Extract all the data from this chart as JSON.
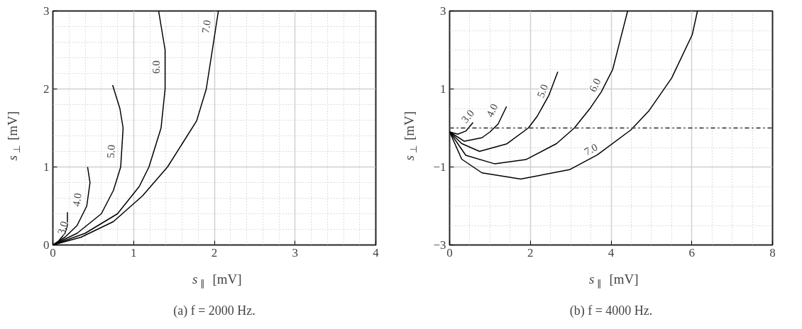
{
  "chart_data": [
    {
      "type": "line",
      "title": "(a) f = 2000 Hz.",
      "xlabel": "s$_{∥}$ [mV]",
      "ylabel": "s$_{⊥}$ [mV]",
      "xlim": [
        0,
        4
      ],
      "ylim": [
        0,
        3
      ],
      "xticks": [
        0,
        1,
        2,
        3,
        4
      ],
      "yticks": [
        0,
        1,
        2,
        3
      ],
      "grid": true,
      "line_style": "solid",
      "marker": "none",
      "series": [
        {
          "color": "#000000",
          "x": [
            0,
            0.07,
            0.15,
            0.18,
            0.18
          ],
          "values": [
            0,
            0.05,
            0.15,
            0.25,
            0.42
          ]
        },
        {
          "color": "#000000",
          "x": [
            0,
            0.15,
            0.3,
            0.42,
            0.46,
            0.43
          ],
          "values": [
            0,
            0.1,
            0.25,
            0.5,
            0.8,
            1.0
          ]
        },
        {
          "color": "#000000",
          "x": [
            0,
            0.3,
            0.6,
            0.75,
            0.84,
            0.87,
            0.83,
            0.74
          ],
          "values": [
            0,
            0.15,
            0.4,
            0.7,
            1.0,
            1.5,
            1.75,
            2.05
          ]
        },
        {
          "color": "#000000",
          "x": [
            0,
            0.4,
            0.8,
            1.07,
            1.19,
            1.34,
            1.39,
            1.39,
            1.31
          ],
          "values": [
            0,
            0.15,
            0.4,
            0.75,
            1.0,
            1.5,
            2.0,
            2.5,
            3.0
          ]
        },
        {
          "color": "#000000",
          "x": [
            0,
            0.35,
            0.75,
            1.11,
            1.42,
            1.78,
            1.9,
            2.05
          ],
          "values": [
            0,
            0.1,
            0.3,
            0.63,
            1.0,
            1.59,
            2.0,
            3.0
          ]
        }
      ],
      "annotations": [
        {
          "text": "3.0",
          "x": 0.12,
          "y": 0.22
        },
        {
          "text": "4.0",
          "x": 0.3,
          "y": 0.58
        },
        {
          "text": "5.0",
          "x": 0.72,
          "y": 1.2
        },
        {
          "text": "6.0",
          "x": 1.28,
          "y": 2.28
        },
        {
          "text": "7.0",
          "x": 1.9,
          "y": 2.8
        }
      ]
    },
    {
      "type": "line",
      "title": "(b) f = 4000 Hz.",
      "xlabel": "s$_{∥}$ [mV]",
      "ylabel": "s$_{⊥}$ [mV]",
      "xlim": [
        0,
        8
      ],
      "ylim": [
        -3,
        3
      ],
      "xticks": [
        0,
        2,
        4,
        6,
        8
      ],
      "yticks": [
        -3,
        -1,
        1,
        3
      ],
      "grid": true,
      "line_style": "solid",
      "marker": "none",
      "ref_lines": [
        {
          "axis": "y",
          "value": 0,
          "color": "#555555",
          "line_style": "dashed"
        }
      ],
      "series": [
        {
          "color": "#000000",
          "x": [
            0,
            0.2,
            0.4,
            0.58
          ],
          "values": [
            -0.1,
            -0.16,
            -0.08,
            0.14
          ]
        },
        {
          "color": "#000000",
          "x": [
            0,
            0.36,
            0.8,
            1.0,
            1.2,
            1.41
          ],
          "values": [
            -0.1,
            -0.34,
            -0.25,
            -0.1,
            0.1,
            0.55
          ]
        },
        {
          "color": "#000000",
          "x": [
            0,
            0.3,
            0.74,
            1.41,
            1.95,
            2.17,
            2.46,
            2.68
          ],
          "values": [
            -0.1,
            -0.4,
            -0.6,
            -0.41,
            0,
            0.3,
            0.84,
            1.44
          ]
        },
        {
          "color": "#000000",
          "x": [
            0,
            0.4,
            1.12,
            1.89,
            2.65,
            3.09,
            3.47,
            3.76,
            4.04,
            4.23,
            4.41
          ],
          "values": [
            -0.1,
            -0.7,
            -0.92,
            -0.81,
            -0.4,
            0,
            0.49,
            0.93,
            1.5,
            2.27,
            3.0
          ]
        },
        {
          "color": "#000000",
          "x": [
            0,
            0.3,
            0.8,
            1.76,
            2.97,
            3.66,
            4.49,
            4.93,
            5.5,
            6.01,
            6.14
          ],
          "values": [
            -0.1,
            -0.8,
            -1.15,
            -1.31,
            -1.07,
            -0.69,
            -0.05,
            0.43,
            1.28,
            2.39,
            3.0
          ]
        }
      ],
      "annotations": [
        {
          "text": "3.0",
          "x": 0.45,
          "y": 0.3
        },
        {
          "text": "4.0",
          "x": 1.05,
          "y": 0.45
        },
        {
          "text": "5.0",
          "x": 2.3,
          "y": 0.95
        },
        {
          "text": "6.0",
          "x": 3.6,
          "y": 1.1
        },
        {
          "text": "7.0",
          "x": 3.5,
          "y": -0.55
        }
      ]
    }
  ]
}
